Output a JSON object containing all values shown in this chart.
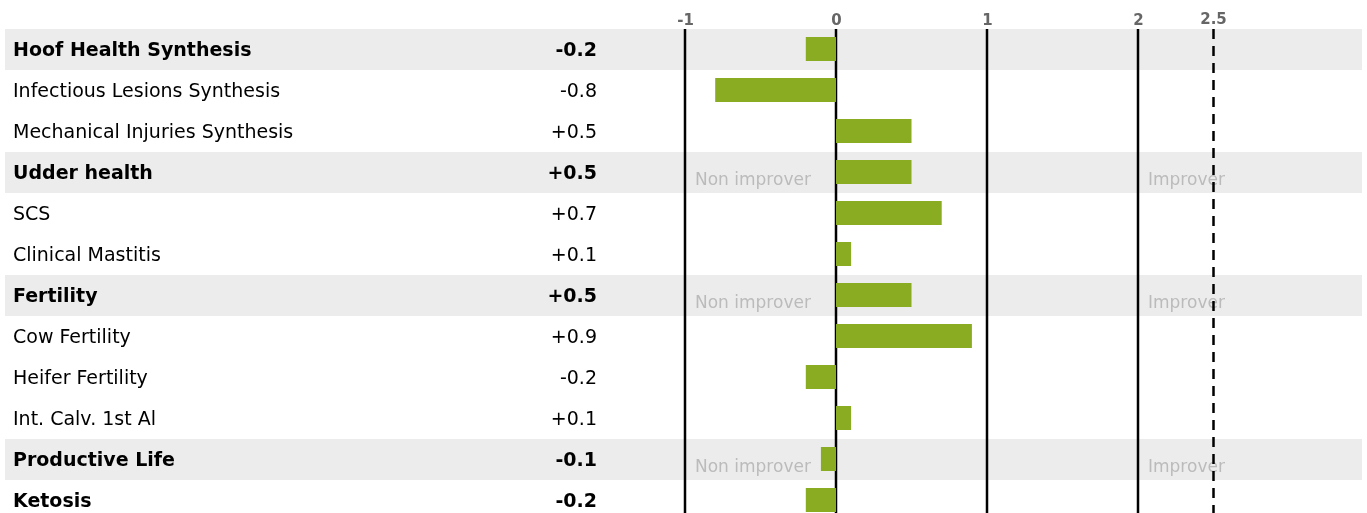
{
  "chart_data": {
    "type": "bar",
    "orientation": "horizontal",
    "categories": [
      "Hoof Health Synthesis",
      "Infectious Lesions Synthesis",
      "Mechanical Injuries Synthesis",
      "Udder health",
      "SCS",
      "Clinical Mastitis",
      "Fertility",
      "Cow Fertility",
      "Heifer Fertility",
      "Int. Calv. 1st Al",
      "Productive Life",
      "Ketosis"
    ],
    "values": [
      -0.2,
      -0.8,
      0.5,
      0.5,
      0.7,
      0.1,
      0.5,
      0.9,
      -0.2,
      0.1,
      -0.1,
      -0.2
    ],
    "value_labels": [
      "-0.2",
      "-0.8",
      "+0.5",
      "+0.5",
      "+0.7",
      "+0.1",
      "+0.5",
      "+0.9",
      "-0.2",
      "+0.1",
      "-0.1",
      "-0.2"
    ],
    "color": "#8aac22",
    "x2lim": [
      -1,
      2.5
    ],
    "x2ticks": [
      -1,
      0,
      1,
      2
    ],
    "grid": "x",
    "ref_lines": [
      {
        "axis": "x2",
        "value": 2.5,
        "label": "2.5",
        "line_style": "dashed"
      }
    ],
    "annotations": [
      "Non improver",
      "Improver",
      "Non improver",
      "Improver",
      "Non improver",
      "Improver"
    ]
  }
}
